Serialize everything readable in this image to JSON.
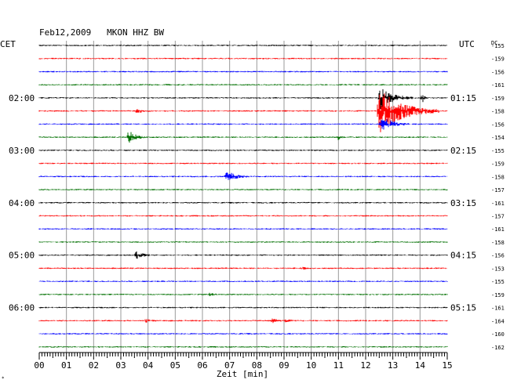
{
  "chart_data": {
    "type": "line",
    "title": "Feb12,2009   MKON HHZ BW",
    "xlabel": "Zeit [min]",
    "left_axis_title": "CET",
    "right_axis_title": "UTC",
    "dc_label": "DC",
    "xlim": [
      0,
      15
    ],
    "x_tick_labels": [
      "00",
      "01",
      "02",
      "03",
      "04",
      "05",
      "06",
      "07",
      "08",
      "09",
      "10",
      "11",
      "12",
      "13",
      "14",
      "15"
    ],
    "trace_count": 24,
    "trace_colors": [
      "#000000",
      "#ff0000",
      "#0000ff",
      "#007000"
    ],
    "left_time_labels": [
      {
        "trace": 4,
        "text": "02:00"
      },
      {
        "trace": 8,
        "text": "03:00"
      },
      {
        "trace": 12,
        "text": "04:00"
      },
      {
        "trace": 16,
        "text": "05:00"
      },
      {
        "trace": 20,
        "text": "06:00"
      }
    ],
    "right_time_labels": [
      {
        "trace": 4,
        "text": "01:15"
      },
      {
        "trace": 8,
        "text": "02:15"
      },
      {
        "trace": 12,
        "text": "03:15"
      },
      {
        "trace": 16,
        "text": "04:15"
      },
      {
        "trace": 20,
        "text": "05:15"
      }
    ],
    "dc_offsets": [
      -155,
      -159,
      -156,
      -161,
      -159,
      -158,
      -156,
      -154,
      -155,
      -159,
      -158,
      -157,
      -161,
      -157,
      -161,
      -158,
      -156,
      -153,
      -155,
      -159,
      -161,
      -164,
      -160,
      -162
    ],
    "events": [
      {
        "trace": 4,
        "minute": 12.55,
        "amplitude": 14,
        "duration_min": 1.2
      },
      {
        "trace": 5,
        "minute": 12.5,
        "amplitude": 30,
        "duration_min": 2.2
      },
      {
        "trace": 6,
        "minute": 12.6,
        "amplitude": 10,
        "duration_min": 1.0
      },
      {
        "trace": 4,
        "minute": 14.1,
        "amplitude": 5,
        "duration_min": 0.15
      },
      {
        "trace": 5,
        "minute": 3.6,
        "amplitude": 3,
        "duration_min": 0.5
      },
      {
        "trace": 7,
        "minute": 3.3,
        "amplitude": 9,
        "duration_min": 0.6
      },
      {
        "trace": 7,
        "minute": 11.0,
        "amplitude": 3,
        "duration_min": 0.2
      },
      {
        "trace": 10,
        "minute": 6.9,
        "amplitude": 7,
        "duration_min": 0.8
      },
      {
        "trace": 16,
        "minute": 3.6,
        "amplitude": 6,
        "duration_min": 0.5
      },
      {
        "trace": 17,
        "minute": 9.7,
        "amplitude": 2,
        "duration_min": 0.2
      },
      {
        "trace": 19,
        "minute": 6.3,
        "amplitude": 2,
        "duration_min": 0.3
      },
      {
        "trace": 21,
        "minute": 3.9,
        "amplitude": 2,
        "duration_min": 0.5
      },
      {
        "trace": 21,
        "minute": 8.6,
        "amplitude": 3,
        "duration_min": 0.4
      },
      {
        "trace": 21,
        "minute": 9.1,
        "amplitude": 2,
        "duration_min": 0.3
      }
    ]
  }
}
